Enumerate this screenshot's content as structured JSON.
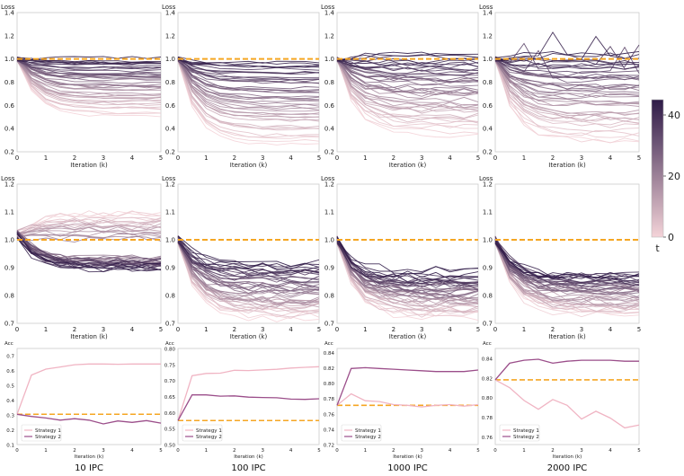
{
  "chart_data": {
    "type": "line",
    "columns": [
      "10 IPC",
      "100 IPC",
      "1000 IPC",
      "2000 IPC"
    ],
    "x_ticks": [
      0,
      1,
      2,
      3,
      4,
      5
    ],
    "xlabel": "Iteration (k)",
    "colorbar": {
      "label": "t",
      "ticks": [
        0,
        20,
        40
      ],
      "range": [
        0,
        45
      ],
      "color_low": "#f2d0d5",
      "color_high": "#2e1a47"
    },
    "reference_line": {
      "value": 1.0,
      "color": "#f5a623",
      "style": "dashed"
    },
    "loss_rows": [
      {
        "ylabel": "Loss",
        "ylim": [
          0.2,
          1.4
        ],
        "yticks": [
          "0.2",
          "0.4",
          "0.6",
          "0.8",
          "1.0",
          "1.2",
          "1.4"
        ],
        "panels": [
          {
            "column": "10 IPC",
            "t_count": 45,
            "final_loss_min": 0.5,
            "final_loss_max": 1.0
          },
          {
            "column": "100 IPC",
            "t_count": 45,
            "final_loss_min": 0.25,
            "final_loss_max": 0.97
          },
          {
            "column": "1000 IPC",
            "t_count": 45,
            "final_loss_min": 0.35,
            "final_loss_max": 1.03
          },
          {
            "column": "2000 IPC",
            "t_count": 45,
            "final_loss_min": 0.28,
            "final_loss_max": 1.03
          }
        ]
      },
      {
        "ylabel": "Loss",
        "ylim": [
          0.7,
          1.2
        ],
        "yticks": [
          "0.7",
          "0.8",
          "0.9",
          "1.0",
          "1.1",
          "1.2"
        ],
        "panels": [
          {
            "column": "10 IPC",
            "t_count": 45,
            "final_loss_min": 0.9,
            "final_loss_max": 1.1
          },
          {
            "column": "100 IPC",
            "t_count": 45,
            "final_loss_min": 0.72,
            "final_loss_max": 0.91
          },
          {
            "column": "1000 IPC",
            "t_count": 45,
            "final_loss_min": 0.73,
            "final_loss_max": 0.88
          },
          {
            "column": "2000 IPC",
            "t_count": 45,
            "final_loss_min": 0.74,
            "final_loss_max": 0.88
          }
        ]
      }
    ],
    "acc_row": {
      "ylabel": "Acc",
      "x": [
        0,
        0.5,
        1,
        1.5,
        2,
        2.5,
        3,
        3.5,
        4,
        4.5,
        5
      ],
      "legend": [
        "Strategy 1",
        "Strategy 2"
      ],
      "series_colors": [
        "#f0b4c3",
        "#9b4e8a"
      ],
      "panels": [
        {
          "column": "10 IPC",
          "ylim": [
            0.1,
            0.75
          ],
          "yticks": [
            "0.1",
            "0.2",
            "0.3",
            "0.4",
            "0.5",
            "0.6",
            "0.7"
          ],
          "baseline": 0.305,
          "series": [
            {
              "name": "Strategy 1",
              "values": [
                0.305,
                0.57,
                0.61,
                0.625,
                0.64,
                0.645,
                0.645,
                0.643,
                0.645,
                0.645,
                0.645
              ]
            },
            {
              "name": "Strategy 2",
              "values": [
                0.305,
                0.29,
                0.28,
                0.265,
                0.275,
                0.265,
                0.24,
                0.26,
                0.25,
                0.262,
                0.245
              ]
            }
          ]
        },
        {
          "column": "100 IPC",
          "ylim": [
            0.5,
            0.8
          ],
          "yticks": [
            "0.50",
            "0.55",
            "0.60",
            "0.65",
            "0.70",
            "0.75",
            "0.80"
          ],
          "baseline": 0.575,
          "series": [
            {
              "name": "Strategy 1",
              "values": [
                0.575,
                0.715,
                0.722,
                0.723,
                0.732,
                0.731,
                0.733,
                0.735,
                0.739,
                0.741,
                0.743
              ]
            },
            {
              "name": "Strategy 2",
              "values": [
                0.575,
                0.655,
                0.655,
                0.651,
                0.652,
                0.648,
                0.647,
                0.646,
                0.642,
                0.641,
                0.643
              ]
            }
          ]
        },
        {
          "column": "1000 IPC",
          "ylim": [
            0.72,
            0.845
          ],
          "yticks": [
            "0.72",
            "0.74",
            "0.76",
            "0.78",
            "0.80",
            "0.82",
            "0.84"
          ],
          "baseline": 0.771,
          "series": [
            {
              "name": "Strategy 1",
              "values": [
                0.771,
                0.786,
                0.777,
                0.776,
                0.772,
                0.771,
                0.769,
                0.771,
                0.772,
                0.77,
                0.772
              ]
            },
            {
              "name": "Strategy 2",
              "values": [
                0.771,
                0.819,
                0.82,
                0.819,
                0.818,
                0.817,
                0.816,
                0.815,
                0.815,
                0.815,
                0.817
              ]
            }
          ]
        },
        {
          "column": "2000 IPC",
          "ylim": [
            0.752,
            0.85
          ],
          "yticks": [
            "0.76",
            "0.78",
            "0.80",
            "0.82",
            "0.84"
          ],
          "baseline": 0.818,
          "series": [
            {
              "name": "Strategy 1",
              "values": [
                0.818,
                0.81,
                0.797,
                0.788,
                0.798,
                0.792,
                0.778,
                0.786,
                0.779,
                0.769,
                0.772
              ]
            },
            {
              "name": "Strategy 2",
              "values": [
                0.818,
                0.835,
                0.838,
                0.839,
                0.835,
                0.837,
                0.838,
                0.838,
                0.838,
                0.837,
                0.837
              ]
            }
          ]
        }
      ]
    }
  }
}
